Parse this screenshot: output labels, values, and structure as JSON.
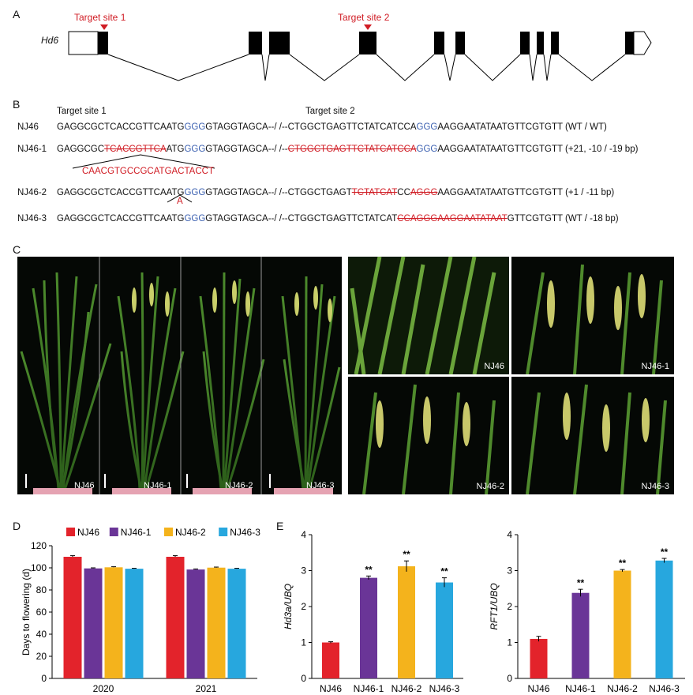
{
  "panelA": {
    "letter": "A",
    "gene": "Hd6",
    "target1": "Target site 1",
    "target2": "Target site 2"
  },
  "panelB": {
    "letter": "B",
    "header1": "Target site 1",
    "header2": "Target site 2",
    "rows": [
      {
        "label": "NJ46",
        "note": "(WT / WT)"
      },
      {
        "label": "NJ46-1",
        "note": "(+21, -10 / -19 bp)",
        "insert": "CAACGTGCCGCATGACTACCT"
      },
      {
        "label": "NJ46-2",
        "note": "(+1 / -11 bp)",
        "insert": "A"
      },
      {
        "label": "NJ46-3",
        "note": "(WT / -18 bp)"
      }
    ],
    "seq": {
      "r1": [
        "GAGGCGCTCACCGTTCAATG",
        "GGG",
        "GTAGGTAGCA--/ /--CTGGCTGAGTTCTATCATCCA",
        "GGG",
        "AAGGAATATAATGTTCGTGTT"
      ],
      "r2": [
        "GAGGCGC",
        "TCACCGTTCA",
        "ATG",
        "GGG",
        "GTAGGTAGCA--/ /--",
        "CTGGCTGAGTTCTATCATCCA",
        "GGG",
        "AAGGAATATAATGTTCGTGTT"
      ],
      "r3": [
        "GAGGCGCTCACCGTTCAATG",
        "GGG",
        "GTAGGTAGCA--/ /--CTGGCTGAGT",
        "TCTATCAT",
        "CC",
        "AGGG",
        "AAGGAATATAATGTTCGTGTT"
      ],
      "r4": [
        "GAGGCGCTCACCGTTCAATG",
        "GGG",
        "GTAGGTAGCA--/ /--CTGGCTGAGTTCTATCAT",
        "CCAGGGAAGGAATATAAT",
        "GTTCGTGTT"
      ]
    }
  },
  "panelC": {
    "letter": "C",
    "plants": [
      "NJ46",
      "NJ46-1",
      "NJ46-2",
      "NJ46-3"
    ],
    "panicles": [
      "NJ46",
      "NJ46-1",
      "NJ46-2",
      "NJ46-3"
    ]
  },
  "panelD": {
    "letter": "D",
    "ylabel": "Days to flowering (d)",
    "chart_data": {
      "type": "bar",
      "categories": [
        "2020",
        "2021"
      ],
      "series": [
        {
          "name": "NJ46",
          "values": [
            110,
            110
          ],
          "err": [
            1,
            1
          ],
          "color": "#e3232b"
        },
        {
          "name": "NJ46-1",
          "values": [
            99.5,
            98.5
          ],
          "err": [
            0.5,
            0.5
          ],
          "color": "#6a3597"
        },
        {
          "name": "NJ46-2",
          "values": [
            100.5,
            100.2
          ],
          "err": [
            0.5,
            0.5
          ],
          "color": "#f4b31c"
        },
        {
          "name": "NJ46-3",
          "values": [
            99.2,
            99.2
          ],
          "err": [
            0.4,
            0.4
          ],
          "color": "#27a7de"
        }
      ],
      "ylim": [
        0,
        120
      ],
      "yticks": [
        0,
        20,
        40,
        60,
        80,
        100,
        120
      ]
    }
  },
  "panelE": {
    "letter": "E",
    "charts": [
      {
        "type": "bar",
        "ylabel": "Hd3a/UBQ",
        "categories": [
          "NJ46",
          "NJ46-1",
          "NJ46-2",
          "NJ46-3"
        ],
        "values": [
          1.0,
          2.8,
          3.12,
          2.67
        ],
        "err": [
          0.02,
          0.05,
          0.15,
          0.13
        ],
        "sig": [
          "",
          "**",
          "**",
          "**"
        ],
        "colors": [
          "#e3232b",
          "#6a3597",
          "#f4b31c",
          "#27a7de"
        ],
        "ylim": [
          0,
          4
        ],
        "yticks": [
          0,
          1,
          2,
          3,
          4
        ]
      },
      {
        "type": "bar",
        "ylabel": "RFT1/UBQ",
        "categories": [
          "NJ46",
          "NJ46-1",
          "NJ46-2",
          "NJ46-3"
        ],
        "values": [
          1.1,
          2.38,
          3.0,
          3.28
        ],
        "err": [
          0.07,
          0.1,
          0.03,
          0.06
        ],
        "sig": [
          "",
          "**",
          "**",
          "**"
        ],
        "colors": [
          "#e3232b",
          "#6a3597",
          "#f4b31c",
          "#27a7de"
        ],
        "ylim": [
          0,
          4
        ],
        "yticks": [
          0,
          1,
          2,
          3,
          4
        ]
      }
    ]
  }
}
